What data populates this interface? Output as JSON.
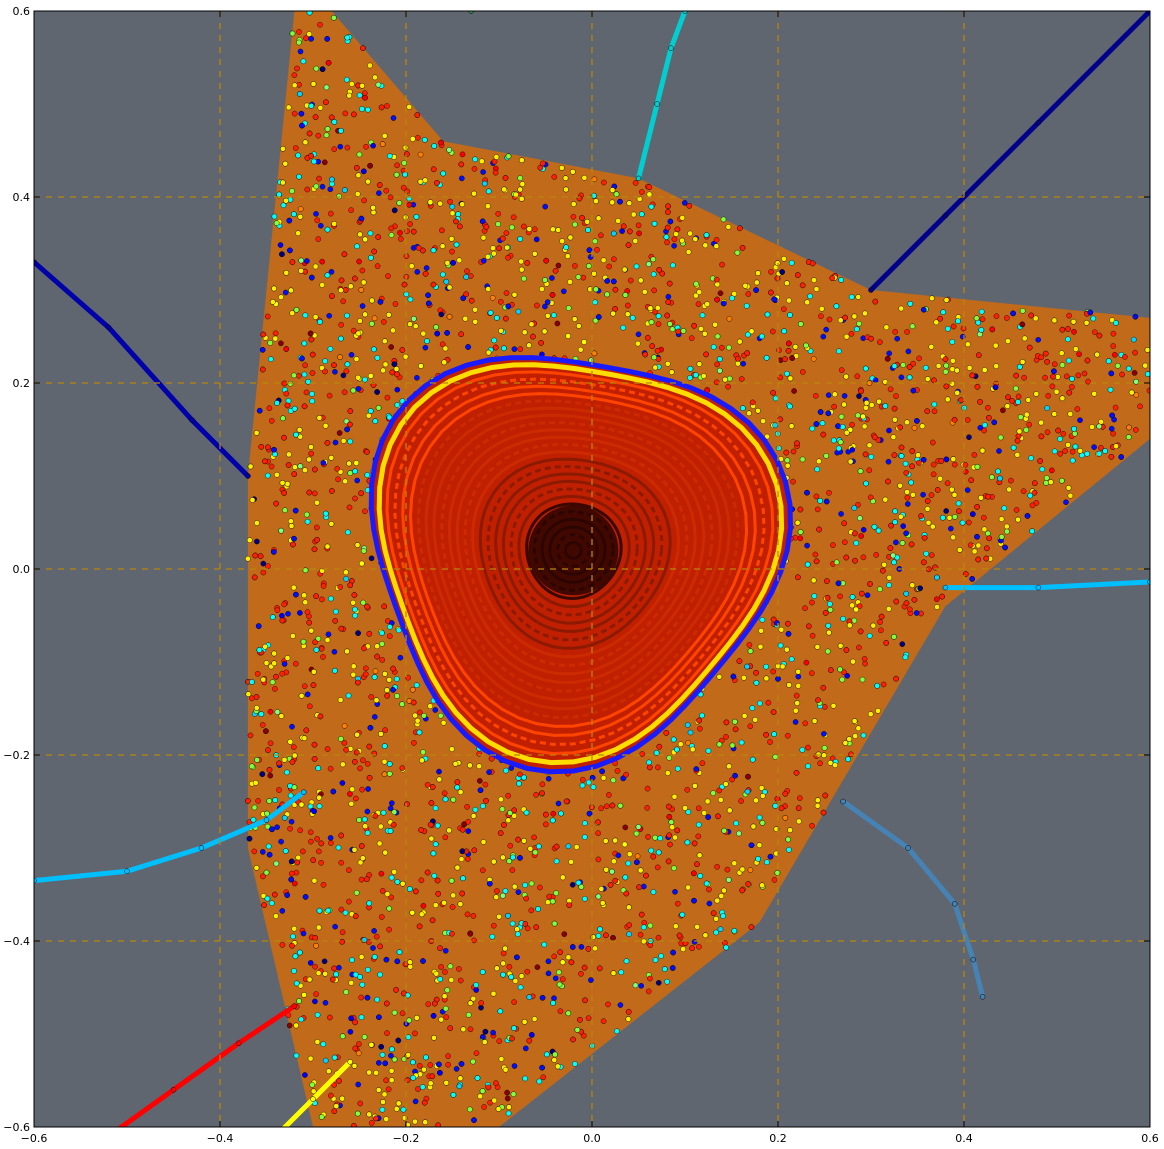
{
  "chart_data": {
    "type": "scatter",
    "title": "",
    "xlabel": "",
    "ylabel": "",
    "xlim": [
      -0.6,
      0.6
    ],
    "ylim": [
      -0.6,
      0.6
    ],
    "grid": true,
    "grid_style": "dashed",
    "grid_color": "#b8860b",
    "plot_background": "#5f6670",
    "x_ticks": [
      -0.6,
      -0.4,
      -0.2,
      0.0,
      0.2,
      0.4,
      0.6
    ],
    "y_ticks": [
      -0.6,
      -0.4,
      -0.2,
      0.0,
      0.2,
      0.4,
      0.6
    ],
    "x_tick_labels": [
      "−0.6",
      "−0.4",
      "−0.2",
      "0.0",
      "0.2",
      "0.4",
      "0.6"
    ],
    "y_tick_labels": [
      "−0.6",
      "−0.4",
      "−0.2",
      "0.0",
      "0.2",
      "0.4",
      "0.6"
    ],
    "colormap": "jet",
    "point_colors": [
      "#000080",
      "#0000ff",
      "#00d4ff",
      "#00ffff",
      "#7fff7f",
      "#ffff00",
      "#ff8000",
      "#ff0000",
      "#8b0000"
    ],
    "chaotic_region_vertices": [
      [
        -0.32,
        0.6
      ],
      [
        -0.28,
        0.6
      ],
      [
        -0.16,
        0.46
      ],
      [
        0.05,
        0.42
      ],
      [
        0.3,
        0.3
      ],
      [
        0.6,
        0.27
      ],
      [
        0.6,
        0.14
      ],
      [
        0.38,
        -0.04
      ],
      [
        0.18,
        -0.38
      ],
      [
        -0.1,
        -0.6
      ],
      [
        -0.3,
        -0.6
      ],
      [
        -0.37,
        -0.3
      ],
      [
        -0.37,
        0.1
      ]
    ],
    "regular_island": {
      "center": [
        -0.02,
        0.02
      ],
      "radius": 0.22
    },
    "series": [
      {
        "color": "#ff0000",
        "values": [
          [
            -0.52,
            -0.61
          ],
          [
            -0.45,
            -0.56
          ],
          [
            -0.38,
            -0.51
          ],
          [
            -0.32,
            -0.47
          ]
        ]
      },
      {
        "color": "#ffff00",
        "values": [
          [
            -0.35,
            -0.62
          ],
          [
            -0.3,
            -0.57
          ],
          [
            -0.26,
            -0.53
          ]
        ]
      },
      {
        "color": "#00bfff",
        "values": [
          [
            -0.6,
            -0.335
          ],
          [
            -0.5,
            -0.325
          ],
          [
            -0.42,
            -0.3
          ],
          [
            -0.35,
            -0.27
          ],
          [
            -0.31,
            -0.24
          ]
        ]
      },
      {
        "color": "#0000aa",
        "values": [
          [
            -0.6,
            0.33
          ],
          [
            -0.52,
            0.26
          ],
          [
            -0.43,
            0.16
          ],
          [
            -0.37,
            0.1
          ]
        ]
      },
      {
        "color": "#00008b",
        "values": [
          [
            0.3,
            0.3
          ],
          [
            0.38,
            0.38
          ],
          [
            0.48,
            0.48
          ],
          [
            0.6,
            0.6
          ]
        ]
      },
      {
        "color": "#00bfff",
        "values": [
          [
            0.38,
            -0.02
          ],
          [
            0.48,
            -0.02
          ],
          [
            0.6,
            -0.014
          ]
        ]
      },
      {
        "color": "#00ced1",
        "values": [
          [
            0.05,
            0.42
          ],
          [
            0.07,
            0.5
          ],
          [
            0.085,
            0.56
          ],
          [
            0.1,
            0.6
          ]
        ]
      },
      {
        "color": "#2e8b57",
        "values": [
          [
            -0.13,
            0.6
          ],
          [
            -0.128,
            0.62
          ]
        ]
      },
      {
        "color": "#4682b4",
        "values": [
          [
            0.27,
            -0.25
          ],
          [
            0.34,
            -0.3
          ],
          [
            0.39,
            -0.36
          ],
          [
            0.41,
            -0.42
          ],
          [
            0.42,
            -0.46
          ]
        ]
      }
    ]
  }
}
